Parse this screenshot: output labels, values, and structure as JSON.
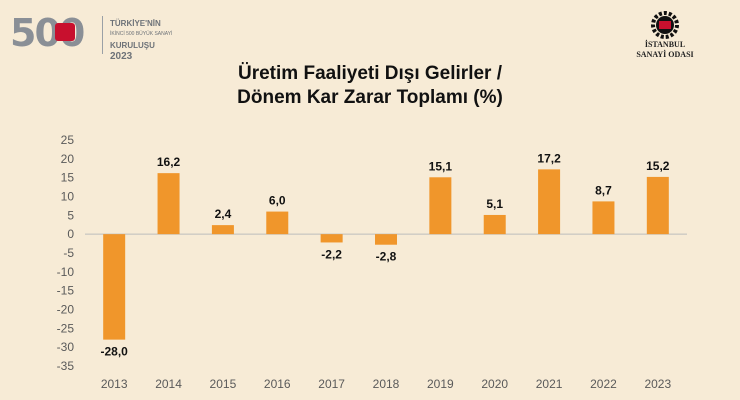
{
  "header": {
    "left_logo": {
      "number": "500",
      "line1": "TÜRKİYE'NİN",
      "line2": "İKİNCİ 500 BÜYÜK SANAYİ",
      "line3": "KURULUŞU",
      "year": "2023"
    },
    "right_logo": {
      "line1": "İSTANBUL",
      "line2": "SANAYİ ODASI"
    }
  },
  "colors": {
    "bar": "#f0962b",
    "background": "#f7ebd6",
    "axis_text": "#5a5a5a",
    "brand_red": "#c8102e"
  },
  "chart_data": {
    "type": "bar",
    "title_line1": "Üretim Faaliyeti Dışı Gelirler /",
    "title_line2": "Dönem Kar Zarar Toplamı  (%)",
    "xlabel": "",
    "ylabel": "",
    "categories": [
      "2013",
      "2014",
      "2015",
      "2016",
      "2017",
      "2018",
      "2019",
      "2020",
      "2021",
      "2022",
      "2023"
    ],
    "values": [
      -28.0,
      16.2,
      2.4,
      6.0,
      -2.2,
      -2.8,
      15.1,
      5.1,
      17.2,
      8.7,
      15.2
    ],
    "data_labels": [
      "-28,0",
      "16,2",
      "2,4",
      "6,0",
      "-2,2",
      "-2,8",
      "15,1",
      "5,1",
      "17,2",
      "8,7",
      "15,2"
    ],
    "y_ticks": [
      "25",
      "20",
      "15",
      "10",
      "5",
      "0",
      "-5",
      "-10",
      "-15",
      "-20",
      "-25",
      "-30",
      "-35"
    ],
    "ylim": [
      -35,
      25
    ],
    "grid": false,
    "legend": "none"
  }
}
